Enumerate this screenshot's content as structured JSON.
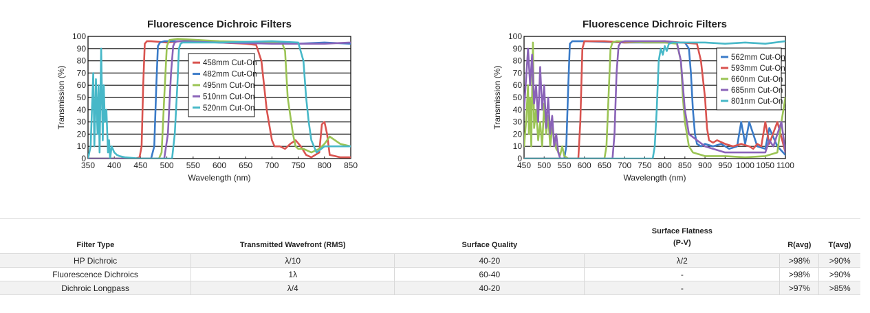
{
  "chart_data": [
    {
      "type": "line",
      "title": "Fluorescence Dichroic Filters",
      "xlabel": "Wavelength (nm)",
      "ylabel": "Transmission (%)",
      "xlim": [
        350,
        850
      ],
      "ylim": [
        0,
        100
      ],
      "xticks": [
        350,
        400,
        450,
        500,
        550,
        600,
        650,
        700,
        750,
        800,
        850
      ],
      "yticks": [
        0,
        10,
        20,
        30,
        40,
        50,
        60,
        70,
        80,
        90,
        100
      ],
      "grid": "horizontal",
      "legend": "center",
      "series": [
        {
          "name": "458mm Cut-On",
          "color": "#d9534f",
          "x": [
            350,
            440,
            448,
            452,
            455,
            458,
            462,
            470,
            500,
            550,
            600,
            650,
            670,
            680,
            690,
            700,
            705,
            715,
            725,
            735,
            745,
            755,
            765,
            775,
            790,
            795,
            800,
            805,
            810,
            820,
            830,
            850
          ],
          "y": [
            0,
            0,
            1,
            10,
            60,
            94,
            96,
            96,
            95,
            97,
            95,
            94,
            93,
            80,
            40,
            15,
            10,
            10,
            8,
            12,
            15,
            10,
            3,
            1,
            5,
            28,
            30,
            20,
            3,
            2,
            1,
            1
          ]
        },
        {
          "name": "482mm Cut-On",
          "color": "#3a7bc8",
          "x": [
            350,
            470,
            476,
            480,
            483,
            487,
            495,
            550,
            600,
            650,
            700,
            750,
            800,
            850
          ],
          "y": [
            0,
            0,
            10,
            60,
            92,
            95,
            96,
            96,
            95,
            95,
            95,
            94,
            95,
            94
          ]
        },
        {
          "name": "495nm Cut-On",
          "color": "#9bc454",
          "x": [
            350,
            485,
            490,
            495,
            500,
            505,
            520,
            600,
            700,
            720,
            725,
            730,
            740,
            745,
            750,
            760,
            775,
            790,
            800,
            810,
            830,
            850
          ],
          "y": [
            0,
            0,
            5,
            50,
            92,
            97,
            98,
            96,
            95,
            94,
            88,
            50,
            20,
            10,
            8,
            8,
            5,
            8,
            12,
            18,
            12,
            10
          ]
        },
        {
          "name": "510nm Cut-On",
          "color": "#8a63b8",
          "x": [
            350,
            495,
            502,
            508,
            512,
            515,
            520,
            600,
            700,
            800,
            850
          ],
          "y": [
            0,
            0,
            20,
            70,
            92,
            95,
            96,
            95,
            94,
            94,
            95
          ]
        },
        {
          "name": "520nm Cut-On",
          "color": "#47b8c8",
          "x": [
            350,
            355,
            360,
            362,
            365,
            368,
            370,
            372,
            375,
            378,
            380,
            382,
            385,
            388,
            390,
            392,
            395,
            400,
            405,
            410,
            420,
            450,
            510,
            515,
            520,
            523,
            526,
            530,
            600,
            700,
            750,
            760,
            765,
            770,
            775,
            785,
            800,
            850
          ],
          "y": [
            0,
            10,
            70,
            10,
            65,
            20,
            60,
            5,
            90,
            15,
            60,
            30,
            40,
            5,
            15,
            0,
            10,
            5,
            3,
            2,
            1,
            0,
            0,
            20,
            60,
            90,
            94,
            95,
            95,
            96,
            95,
            80,
            50,
            30,
            15,
            5,
            10,
            10
          ]
        }
      ]
    },
    {
      "type": "line",
      "title": "Fluorescence Dichroic Filters",
      "xlabel": "Wavelength (nm)",
      "ylabel": "Transmission (%)",
      "xlim": [
        450,
        1100
      ],
      "ylim": [
        0,
        100
      ],
      "xticks": [
        450,
        500,
        550,
        600,
        650,
        700,
        750,
        800,
        850,
        900,
        950,
        1000,
        1050,
        1100
      ],
      "yticks": [
        0,
        10,
        20,
        30,
        40,
        50,
        60,
        70,
        80,
        90,
        100
      ],
      "grid": "horizontal",
      "legend": "top-right",
      "series": [
        {
          "name": "562mm Cut-On",
          "color": "#3a7bc8",
          "x": [
            450,
            550,
            555,
            560,
            564,
            570,
            600,
            700,
            800,
            850,
            860,
            865,
            870,
            875,
            880,
            890,
            900,
            920,
            940,
            950,
            960,
            980,
            990,
            1000,
            1010,
            1030,
            1050,
            1060,
            1080,
            1100
          ],
          "y": [
            0,
            0,
            10,
            60,
            94,
            96,
            96,
            95,
            95,
            95,
            90,
            70,
            40,
            20,
            12,
            10,
            12,
            10,
            12,
            10,
            8,
            10,
            30,
            12,
            30,
            10,
            8,
            25,
            10,
            3
          ]
        },
        {
          "name": "593mm Cut-On",
          "color": "#d9534f",
          "x": [
            450,
            585,
            590,
            595,
            600,
            650,
            700,
            800,
            880,
            890,
            900,
            905,
            910,
            920,
            930,
            950,
            970,
            990,
            1010,
            1020,
            1030,
            1040,
            1050,
            1060,
            1080,
            1100
          ],
          "y": [
            0,
            0,
            30,
            90,
            96,
            96,
            95,
            96,
            94,
            80,
            50,
            25,
            15,
            13,
            15,
            12,
            10,
            12,
            10,
            8,
            12,
            10,
            30,
            12,
            30,
            5
          ]
        },
        {
          "name": "660nm Cut-On",
          "color": "#9bc454",
          "x": [
            450,
            455,
            460,
            462,
            465,
            468,
            472,
            475,
            480,
            485,
            490,
            495,
            500,
            505,
            510,
            515,
            520,
            530,
            540,
            545,
            550,
            560,
            650,
            655,
            660,
            665,
            670,
            680,
            750,
            800,
            830,
            840,
            845,
            850,
            855,
            860,
            870,
            900,
            950,
            1000,
            1050,
            1080,
            1090,
            1100
          ],
          "y": [
            10,
            30,
            60,
            20,
            50,
            10,
            95,
            25,
            40,
            15,
            30,
            10,
            45,
            20,
            35,
            10,
            25,
            8,
            3,
            10,
            2,
            0,
            0,
            10,
            50,
            90,
            95,
            96,
            95,
            95,
            94,
            80,
            50,
            30,
            20,
            10,
            5,
            2,
            2,
            1,
            2,
            5,
            30,
            50
          ]
        },
        {
          "name": "685nm Cut-On",
          "color": "#8a63b8",
          "x": [
            450,
            460,
            465,
            470,
            475,
            480,
            485,
            490,
            495,
            500,
            505,
            510,
            515,
            520,
            525,
            530,
            535,
            540,
            670,
            675,
            680,
            685,
            690,
            700,
            800,
            830,
            840,
            850,
            860,
            900,
            950,
            1000,
            1050,
            1060,
            1070,
            1080,
            1090,
            1100
          ],
          "y": [
            40,
            90,
            60,
            85,
            45,
            60,
            30,
            75,
            40,
            60,
            25,
            50,
            20,
            35,
            10,
            20,
            5,
            0,
            0,
            20,
            70,
            92,
            95,
            96,
            96,
            95,
            80,
            40,
            20,
            10,
            5,
            5,
            5,
            15,
            10,
            20,
            30,
            5
          ]
        },
        {
          "name": "801nm Cut-On",
          "color": "#47b8c8",
          "x": [
            450,
            770,
            775,
            780,
            785,
            790,
            795,
            800,
            805,
            810,
            820,
            850,
            900,
            950,
            1000,
            1050,
            1100
          ],
          "y": [
            0,
            0,
            10,
            40,
            80,
            90,
            85,
            92,
            88,
            94,
            95,
            95,
            95,
            94,
            95,
            94,
            96
          ]
        }
      ]
    }
  ],
  "table": {
    "headers": {
      "filter_type": "Filter Type",
      "wavefront": "Transmitted Wavefront (RMS)",
      "surface_quality": "Surface Quality",
      "flatness_line1": "Surface Flatness",
      "flatness_line2": "(P-V)",
      "ravg": "R(avg)",
      "tavg": "T(avg)"
    },
    "rows": [
      {
        "filter_type": "HP Dichroic",
        "wavefront": "λ/10",
        "surface_quality": "40-20",
        "flatness": "λ/2",
        "ravg": ">98%",
        "tavg": ">90%"
      },
      {
        "filter_type": "Fluorescence Dichroics",
        "wavefront": "1λ",
        "surface_quality": "60-40",
        "flatness": "-",
        "ravg": ">98%",
        "tavg": ">90%"
      },
      {
        "filter_type": "Dichroic Longpass",
        "wavefront": "λ/4",
        "surface_quality": "40-20",
        "flatness": "-",
        "ravg": ">97%",
        "tavg": ">85%"
      }
    ]
  }
}
